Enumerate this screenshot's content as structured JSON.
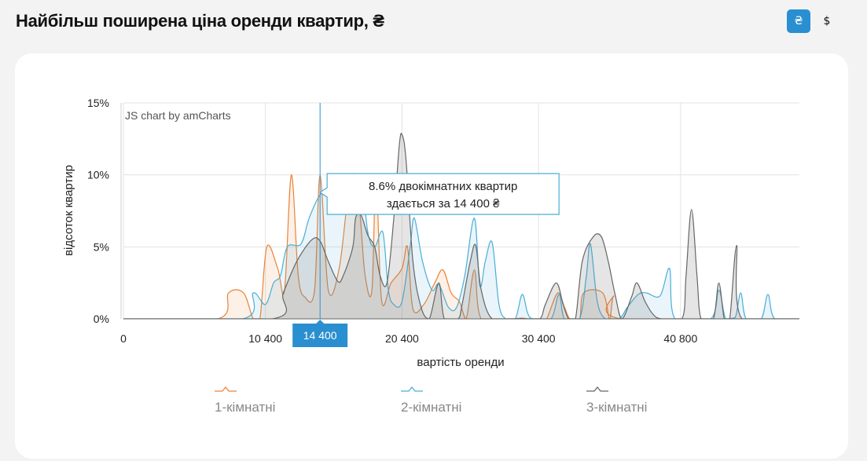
{
  "header": {
    "title": "Найбільш поширена ціна оренди квартир, ₴",
    "currency_uah": "₴",
    "currency_usd": "$",
    "active_currency": "uah"
  },
  "chart_data": {
    "type": "area",
    "xlabel": "вартість оренди",
    "ylabel": "відсоток квартир",
    "xlim": [
      0,
      49500
    ],
    "ylim": [
      0,
      15
    ],
    "x_ticks": [
      {
        "value": 0,
        "label": "0"
      },
      {
        "value": 10400,
        "label": "10 400"
      },
      {
        "value": 20400,
        "label": "20 400"
      },
      {
        "value": 30400,
        "label": "30 400"
      },
      {
        "value": 40800,
        "label": "40 800"
      }
    ],
    "y_ticks": [
      {
        "value": 0,
        "label": "0%"
      },
      {
        "value": 5,
        "label": "5%"
      },
      {
        "value": 10,
        "label": "10%"
      },
      {
        "value": 15,
        "label": "15%"
      }
    ],
    "grid": true,
    "legend_position": "bottom",
    "credit": "JS chart by amCharts",
    "cursor": {
      "x": 14400,
      "label": "14 400"
    },
    "tooltip": {
      "line1": "8.6% двокімнатних квартир",
      "line2": "здається за 14 400 ₴"
    },
    "series": [
      {
        "name": "1-кімнатні",
        "color": "#e8843a",
        "points": [
          [
            0,
            0
          ],
          [
            6900,
            0
          ],
          [
            7700,
            1.8
          ],
          [
            8800,
            1.8
          ],
          [
            9500,
            0
          ],
          [
            10000,
            0
          ],
          [
            10500,
            5
          ],
          [
            11300,
            3.5
          ],
          [
            11800,
            2
          ],
          [
            12300,
            10
          ],
          [
            12800,
            3
          ],
          [
            13300,
            1.5
          ],
          [
            14000,
            2
          ],
          [
            14400,
            10
          ],
          [
            15000,
            2
          ],
          [
            15800,
            3.5
          ],
          [
            16500,
            9
          ],
          [
            16900,
            10
          ],
          [
            17300,
            7.5
          ],
          [
            17700,
            3
          ],
          [
            18200,
            2
          ],
          [
            18500,
            10
          ],
          [
            18900,
            1.3
          ],
          [
            19600,
            2.5
          ],
          [
            20400,
            3.5
          ],
          [
            20800,
            5
          ],
          [
            21200,
            0.7
          ],
          [
            22000,
            1
          ],
          [
            22800,
            2.5
          ],
          [
            23400,
            3.4
          ],
          [
            24000,
            1.8
          ],
          [
            24600,
            1.2
          ],
          [
            25100,
            0
          ],
          [
            25700,
            3.4
          ],
          [
            26200,
            0
          ],
          [
            28200,
            0
          ],
          [
            29200,
            0.05
          ],
          [
            29700,
            0
          ],
          [
            30400,
            0
          ],
          [
            30700,
            0
          ],
          [
            31000,
            0
          ],
          [
            31800,
            1.8
          ],
          [
            32300,
            0.8
          ],
          [
            32700,
            0
          ],
          [
            33400,
            0
          ],
          [
            33700,
            1.8
          ],
          [
            35100,
            1.8
          ],
          [
            35600,
            0
          ],
          [
            35900,
            1.6
          ],
          [
            36500,
            0
          ],
          [
            49500,
            0
          ]
        ]
      },
      {
        "name": "2-кімнатні",
        "color": "#4aaed8",
        "points": [
          [
            0,
            0
          ],
          [
            8700,
            0
          ],
          [
            9500,
            1.8
          ],
          [
            10400,
            1
          ],
          [
            11000,
            2.5
          ],
          [
            11500,
            3
          ],
          [
            12000,
            5
          ],
          [
            13000,
            5.2
          ],
          [
            13600,
            7
          ],
          [
            14400,
            8.6
          ],
          [
            15200,
            9
          ],
          [
            16000,
            8.5
          ],
          [
            16600,
            8
          ],
          [
            17000,
            8.5
          ],
          [
            17400,
            10
          ],
          [
            17900,
            6
          ],
          [
            18400,
            5
          ],
          [
            19000,
            6
          ],
          [
            19400,
            2
          ],
          [
            19800,
            1
          ],
          [
            20400,
            1.2
          ],
          [
            21000,
            5
          ],
          [
            21300,
            7
          ],
          [
            21900,
            4
          ],
          [
            22600,
            2
          ],
          [
            23100,
            2.4
          ],
          [
            23800,
            0.8
          ],
          [
            24400,
            0.8
          ],
          [
            25000,
            3
          ],
          [
            25700,
            7
          ],
          [
            26100,
            2.3
          ],
          [
            26500,
            4
          ],
          [
            27000,
            5.3
          ],
          [
            27500,
            1
          ],
          [
            28000,
            0
          ],
          [
            28700,
            0
          ],
          [
            29200,
            1.7
          ],
          [
            29600,
            0.4
          ],
          [
            30000,
            0
          ],
          [
            31300,
            0
          ],
          [
            31900,
            1.7
          ],
          [
            32300,
            0
          ],
          [
            33400,
            0
          ],
          [
            33900,
            3
          ],
          [
            34200,
            5.2
          ],
          [
            34700,
            1.2
          ],
          [
            35300,
            0
          ],
          [
            36300,
            0
          ],
          [
            36900,
            0.8
          ],
          [
            37700,
            1.7
          ],
          [
            38300,
            1.8
          ],
          [
            39300,
            1.6
          ],
          [
            40000,
            3.5
          ],
          [
            40400,
            0
          ],
          [
            43000,
            0
          ],
          [
            43600,
            2
          ],
          [
            44100,
            0
          ],
          [
            44800,
            0.1
          ],
          [
            45200,
            1.8
          ],
          [
            45600,
            0
          ],
          [
            46700,
            0
          ],
          [
            47200,
            1.7
          ],
          [
            47700,
            0
          ],
          [
            49500,
            0
          ]
        ]
      },
      {
        "name": "3-кімнатні",
        "color": "#666666",
        "points": [
          [
            0,
            0
          ],
          [
            10900,
            0
          ],
          [
            11700,
            1.8
          ],
          [
            12700,
            4
          ],
          [
            13800,
            5.5
          ],
          [
            14400,
            5.4
          ],
          [
            15000,
            4
          ],
          [
            15700,
            2.6
          ],
          [
            16100,
            3
          ],
          [
            16800,
            5
          ],
          [
            17000,
            7
          ],
          [
            17400,
            7.2
          ],
          [
            17900,
            5.8
          ],
          [
            18400,
            5
          ],
          [
            18800,
            3
          ],
          [
            19300,
            2.5
          ],
          [
            19800,
            7
          ],
          [
            20200,
            12
          ],
          [
            20400,
            12.8
          ],
          [
            20700,
            11
          ],
          [
            21200,
            4
          ],
          [
            21800,
            0.8
          ],
          [
            22400,
            0
          ],
          [
            23100,
            2.5
          ],
          [
            23500,
            0
          ],
          [
            24500,
            0
          ],
          [
            24800,
            1
          ],
          [
            25400,
            4
          ],
          [
            25800,
            5.1
          ],
          [
            26200,
            2
          ],
          [
            27000,
            0
          ],
          [
            28600,
            0
          ],
          [
            29200,
            0.03
          ],
          [
            29500,
            0
          ],
          [
            30500,
            0
          ],
          [
            30900,
            1
          ],
          [
            31700,
            2.5
          ],
          [
            32200,
            1
          ],
          [
            32600,
            0
          ],
          [
            33100,
            0
          ],
          [
            33600,
            4
          ],
          [
            34400,
            5.7
          ],
          [
            35000,
            5.7
          ],
          [
            35500,
            4
          ],
          [
            36000,
            1.7
          ],
          [
            36500,
            0
          ],
          [
            37200,
            1.5
          ],
          [
            37600,
            2.5
          ],
          [
            38200,
            1.2
          ],
          [
            38800,
            0.3
          ],
          [
            39400,
            0
          ],
          [
            40900,
            0
          ],
          [
            41200,
            3
          ],
          [
            41600,
            7.6
          ],
          [
            42000,
            3
          ],
          [
            42300,
            0
          ],
          [
            43200,
            0
          ],
          [
            43600,
            2.5
          ],
          [
            44000,
            0
          ],
          [
            44400,
            0
          ],
          [
            44900,
            5.1
          ],
          [
            45300,
            0
          ],
          [
            49500,
            0
          ]
        ]
      }
    ]
  }
}
